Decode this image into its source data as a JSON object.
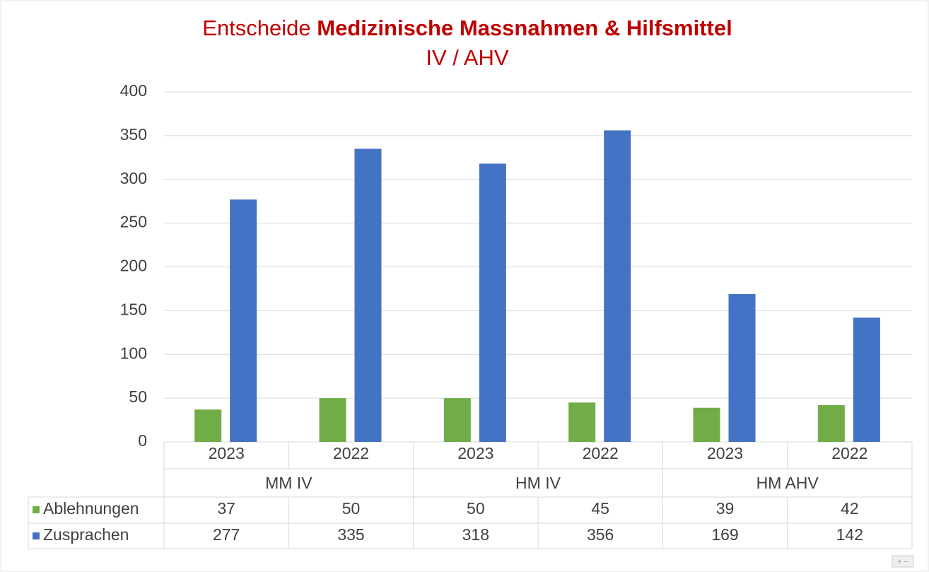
{
  "chart_data": {
    "type": "bar",
    "title": [
      "Entscheide",
      "Medizinische Massnahmen & Hilfsmittel"
    ],
    "subtitle": "IV / AHV",
    "categories": [
      "2023",
      "2022",
      "2023",
      "2022",
      "2023",
      "2022"
    ],
    "groups": [
      "MM IV",
      "HM IV",
      "HM AHV"
    ],
    "series": [
      {
        "name": "Ablehnungen",
        "color": "#70ad47",
        "values": [
          37,
          50,
          50,
          45,
          39,
          42
        ]
      },
      {
        "name": "Zusprachen",
        "color": "#4472c4",
        "values": [
          277,
          335,
          318,
          356,
          169,
          142
        ]
      }
    ],
    "ylim": [
      0,
      400
    ],
    "yticks": [
      0,
      50,
      100,
      150,
      200,
      250,
      300,
      350,
      400
    ],
    "grid": true,
    "data_table": true
  }
}
